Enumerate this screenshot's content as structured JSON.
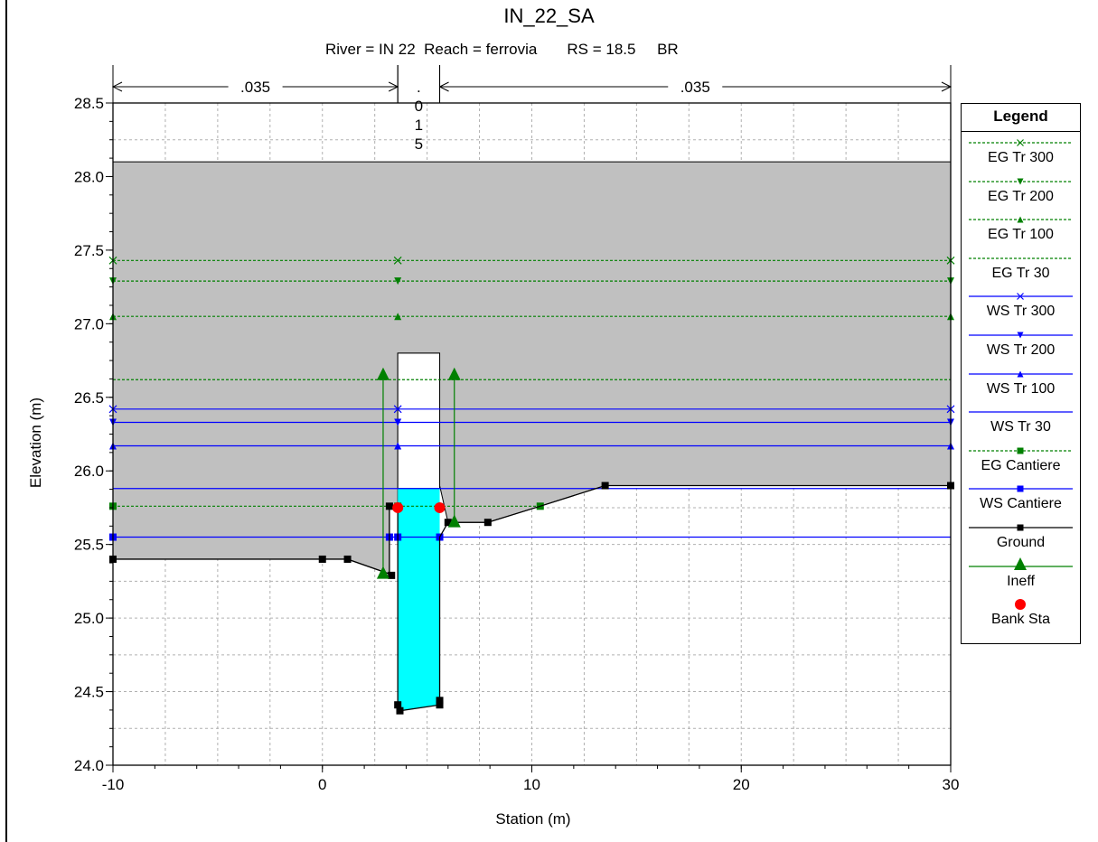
{
  "title": "IN_22_SA",
  "subtitle": "River = IN 22  Reach = ferrovia       RS = 18.5     BR",
  "chart_data": {
    "type": "line",
    "xlabel": "Station (m)",
    "ylabel": "Elevation (m)",
    "xlim": [
      -10,
      30
    ],
    "ylim": [
      24.0,
      28.5
    ],
    "x_ticks": [
      "-10",
      "0",
      "10",
      "20",
      "30"
    ],
    "y_ticks": [
      "24.0",
      "24.5",
      "25.0",
      "25.5",
      "26.0",
      "26.5",
      "27.0",
      "27.5",
      "28.0",
      "28.5"
    ],
    "grid": true,
    "manning": [
      {
        "label": ".035",
        "from": -10,
        "to": 3.6
      },
      {
        "label": ".015",
        "from": 3.6,
        "to": 5.6,
        "vertical": true
      },
      {
        "label": ".035",
        "from": 5.6,
        "to": 30
      }
    ],
    "bridge_deck": {
      "top": 28.1,
      "from": -10,
      "to": 30
    },
    "opening": {
      "from": 3.6,
      "to": 5.6,
      "top": 26.8
    },
    "ground": [
      [
        -10,
        25.4
      ],
      [
        0,
        25.4
      ],
      [
        1.2,
        25.4
      ],
      [
        3.2,
        25.3
      ],
      [
        3.2,
        25.76
      ],
      [
        3.6,
        25.76
      ],
      [
        3.6,
        24.41
      ],
      [
        3.7,
        24.37
      ],
      [
        5.6,
        24.41
      ],
      [
        5.6,
        24.44
      ],
      [
        5.6,
        25.55
      ],
      [
        6.0,
        25.65
      ],
      [
        7.9,
        25.65
      ],
      [
        10.4,
        25.76
      ],
      [
        13.5,
        25.9
      ],
      [
        30,
        25.9
      ]
    ],
    "ground_markers": [
      [
        -10,
        25.4
      ],
      [
        0,
        25.4
      ],
      [
        1.2,
        25.4
      ],
      [
        3.3,
        25.29
      ],
      [
        3.2,
        25.76
      ],
      [
        3.6,
        24.41
      ],
      [
        3.7,
        24.37
      ],
      [
        5.6,
        24.41
      ],
      [
        5.6,
        24.44
      ],
      [
        6.0,
        25.65
      ],
      [
        7.9,
        25.65
      ],
      [
        13.5,
        25.9
      ],
      [
        30,
        25.9
      ]
    ],
    "water_fill": {
      "level": 25.88,
      "from": 3.6,
      "to": 5.6
    },
    "series": [
      {
        "name": "EG Tr 300",
        "y": 27.43,
        "kind": "EG",
        "marker": "x",
        "marker_x": [
          -10,
          3.6,
          30
        ]
      },
      {
        "name": "EG Tr 200",
        "y": 27.29,
        "kind": "EG",
        "marker": "tri-down",
        "marker_x": [
          -10,
          3.6,
          30
        ]
      },
      {
        "name": "EG Tr 100",
        "y": 27.05,
        "kind": "EG",
        "marker": "tri-up",
        "marker_x": [
          -10,
          3.6,
          30
        ]
      },
      {
        "name": "EG Tr 30",
        "y": 26.62,
        "kind": "EG",
        "marker": "none",
        "marker_x": []
      },
      {
        "name": "WS Tr 300",
        "y": 26.42,
        "kind": "WS",
        "marker": "x",
        "marker_x": [
          -10,
          3.6,
          30
        ]
      },
      {
        "name": "WS Tr 200",
        "y": 26.33,
        "kind": "WS",
        "marker": "tri-down",
        "marker_x": [
          -10,
          3.6,
          30
        ]
      },
      {
        "name": "WS Tr 100",
        "y": 26.17,
        "kind": "WS",
        "marker": "tri-up",
        "marker_x": [
          -10,
          3.6,
          30
        ]
      },
      {
        "name": "WS Tr 30",
        "y": 25.88,
        "kind": "WS",
        "marker": "none",
        "marker_x": []
      },
      {
        "name": "EG Cantiere",
        "y": 25.76,
        "kind": "EG",
        "marker": "square",
        "marker_x": [
          -10,
          3.6,
          10.4
        ]
      },
      {
        "name": "WS Cantiere",
        "y": 25.55,
        "kind": "WS",
        "marker": "square",
        "marker_x": [
          -10,
          3.2,
          3.6,
          5.6
        ]
      },
      {
        "name": "Ground",
        "kind": "ground"
      },
      {
        "name": "Ineff",
        "kind": "ineff"
      },
      {
        "name": "Bank Sta",
        "kind": "bank"
      }
    ],
    "ineff": [
      {
        "x": 2.9,
        "top": 26.66,
        "bottom": 25.31
      },
      {
        "x": 6.3,
        "top": 26.66,
        "bottom": 25.66
      }
    ],
    "bank_sta": [
      [
        3.6,
        25.75
      ],
      [
        5.6,
        25.75
      ]
    ],
    "legend": {
      "title": "Legend",
      "position": "right"
    },
    "colors": {
      "eg": "#008000",
      "ws": "#0000ff",
      "ground": "#000000",
      "deck": "#c0c0c0",
      "water": "#00ffff",
      "bank": "#ff0000",
      "grid": "#b0b0b0"
    }
  }
}
